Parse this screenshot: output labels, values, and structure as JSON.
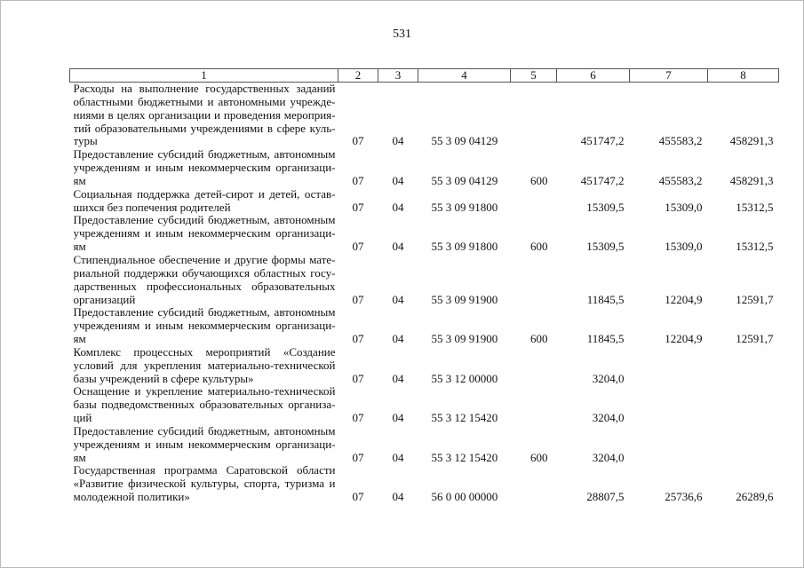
{
  "page_number": "531",
  "table": {
    "headers": [
      "1",
      "2",
      "3",
      "4",
      "5",
      "6",
      "7",
      "8"
    ],
    "rows": [
      {
        "lines": [
          "Расходы на выполнение государственных заданий",
          "областными бюджетными и автономными учрежде-",
          "ниями в целях организации и проведения мероприя-",
          "тий образовательными учреждениями в сфере куль-",
          "туры"
        ],
        "c2": "07",
        "c3": "04",
        "c4": "55 3 09 04129",
        "c5": "",
        "c6": "451747,2",
        "c7": "455583,2",
        "c8": "458291,3"
      },
      {
        "lines": [
          "Предоставление субсидий бюджетным, автономным",
          "учреждениям и иным некоммерческим организаци-",
          "ям"
        ],
        "c2": "07",
        "c3": "04",
        "c4": "55 3 09 04129",
        "c5": "600",
        "c6": "451747,2",
        "c7": "455583,2",
        "c8": "458291,3"
      },
      {
        "lines": [
          "Социальная поддержка детей-сирот и детей, остав-",
          "шихся без попечения родителей"
        ],
        "c2": "07",
        "c3": "04",
        "c4": "55 3 09 91800",
        "c5": "",
        "c6": "15309,5",
        "c7": "15309,0",
        "c8": "15312,5"
      },
      {
        "lines": [
          "Предоставление субсидий бюджетным, автономным",
          "учреждениям и иным некоммерческим организаци-",
          "ям"
        ],
        "c2": "07",
        "c3": "04",
        "c4": "55 3 09 91800",
        "c5": "600",
        "c6": "15309,5",
        "c7": "15309,0",
        "c8": "15312,5"
      },
      {
        "lines": [
          "Стипендиальное обеспечение и другие формы мате-",
          "риальной поддержки обучающихся областных госу-",
          "дарственных профессиональных образовательных",
          "организаций"
        ],
        "c2": "07",
        "c3": "04",
        "c4": "55 3 09 91900",
        "c5": "",
        "c6": "11845,5",
        "c7": "12204,9",
        "c8": "12591,7"
      },
      {
        "lines": [
          "Предоставление субсидий бюджетным, автономным",
          "учреждениям и иным некоммерческим организаци-",
          "ям"
        ],
        "c2": "07",
        "c3": "04",
        "c4": "55 3 09 91900",
        "c5": "600",
        "c6": "11845,5",
        "c7": "12204,9",
        "c8": "12591,7"
      },
      {
        "lines": [
          "Комплекс процессных мероприятий «Создание",
          "условий для укрепления материально-технической",
          "базы учреждений в сфере культуры»"
        ],
        "c2": "07",
        "c3": "04",
        "c4": "55 3 12 00000",
        "c5": "",
        "c6": "3204,0",
        "c7": "",
        "c8": ""
      },
      {
        "lines": [
          "Оснащение и укрепление материально-технической",
          "базы подведомственных образовательных организа-",
          "ций"
        ],
        "c2": "07",
        "c3": "04",
        "c4": "55 3 12 15420",
        "c5": "",
        "c6": "3204,0",
        "c7": "",
        "c8": ""
      },
      {
        "lines": [
          "Предоставление субсидий бюджетным, автономным",
          "учреждениям и иным некоммерческим организаци-",
          "ям"
        ],
        "c2": "07",
        "c3": "04",
        "c4": "55 3 12 15420",
        "c5": "600",
        "c6": "3204,0",
        "c7": "",
        "c8": ""
      },
      {
        "lines": [
          "Государственная программа Саратовской области",
          "«Развитие физической культуры, спорта, туризма и",
          "молодежной политики»"
        ],
        "c2": "07",
        "c3": "04",
        "c4": "56 0 00 00000",
        "c5": "",
        "c6": "28807,5",
        "c7": "25736,6",
        "c8": "26289,6"
      }
    ]
  }
}
